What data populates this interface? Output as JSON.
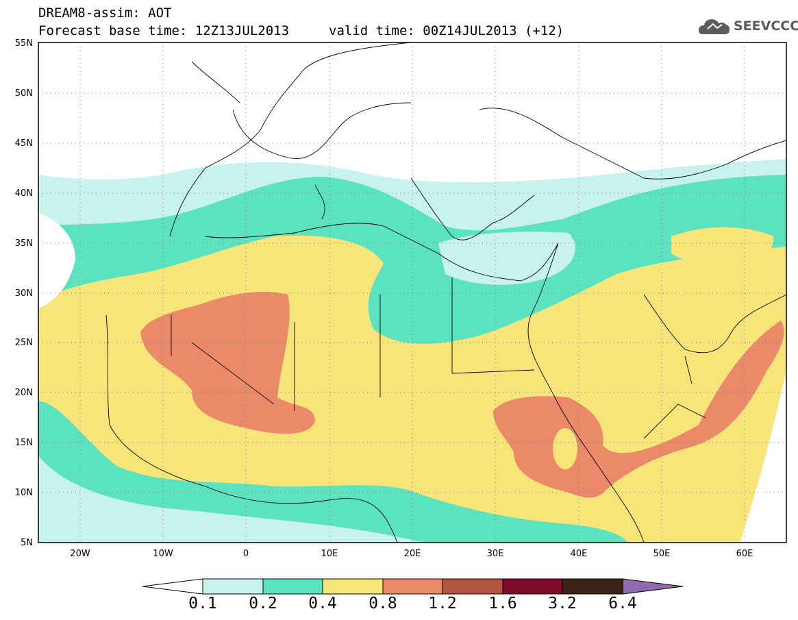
{
  "header": {
    "line1": "DREAM8-assim: AOT",
    "base_time": "Forecast base time: 12Z13JUL2013",
    "valid_time": "valid time: 00Z14JUL2013 (+12)"
  },
  "logo": {
    "text": "SEEVCCC",
    "icon": "cloud-icon"
  },
  "map": {
    "lat_labels": [
      "55N",
      "50N",
      "45N",
      "40N",
      "35N",
      "30N",
      "25N",
      "20N",
      "15N",
      "10N",
      "5N"
    ],
    "lon_labels": [
      "20W",
      "10W",
      "0",
      "10E",
      "20E",
      "30E",
      "40E",
      "50E",
      "60E"
    ],
    "lat_range": [
      5,
      55
    ],
    "lon_range": [
      -25,
      65
    ],
    "grid": true
  },
  "colorbar": {
    "ticks": [
      "0.1",
      "0.2",
      "0.4",
      "0.8",
      "1.2",
      "1.6",
      "3.2",
      "6.4"
    ],
    "colors": [
      "#ffffff",
      "#c8f2ee",
      "#5be3bf",
      "#f7e57a",
      "#eb8a68",
      "#b25541",
      "#7d0b2c",
      "#3b2415",
      "#8f6ab0"
    ]
  }
}
